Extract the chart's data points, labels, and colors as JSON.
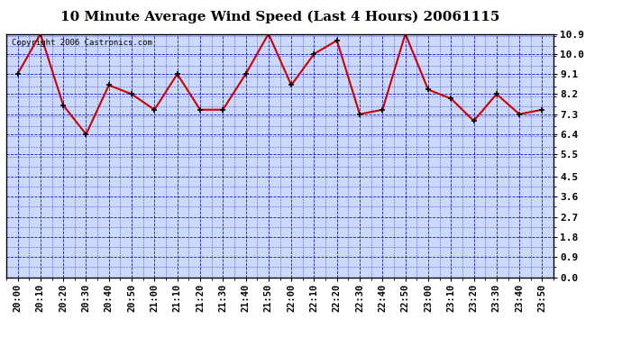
{
  "title": "10 Minute Average Wind Speed (Last 4 Hours) 20061115",
  "copyright": "Copyright 2006 Castronics.com",
  "x_labels": [
    "20:00",
    "20:10",
    "20:20",
    "20:30",
    "20:40",
    "20:50",
    "21:00",
    "21:10",
    "21:20",
    "21:30",
    "21:40",
    "21:50",
    "22:00",
    "22:10",
    "22:20",
    "22:30",
    "22:40",
    "22:50",
    "23:00",
    "23:10",
    "23:20",
    "23:30",
    "23:40",
    "23:50"
  ],
  "y_values": [
    9.1,
    10.9,
    7.7,
    6.4,
    8.6,
    8.2,
    7.5,
    9.1,
    7.5,
    7.5,
    9.1,
    10.9,
    8.6,
    10.0,
    10.6,
    7.3,
    7.5,
    10.9,
    8.4,
    8.0,
    7.0,
    8.2,
    7.3,
    7.5
  ],
  "line_color": "#cc0000",
  "marker_color": "#000000",
  "bg_color": "#ffffff",
  "plot_bg_color": "#ccd9ff",
  "grid_color": "#0000bb",
  "y_ticks": [
    0.0,
    0.9,
    1.8,
    2.7,
    3.6,
    4.5,
    5.5,
    6.4,
    7.3,
    8.2,
    9.1,
    10.0,
    10.9
  ],
  "ylim": [
    0.0,
    10.9
  ],
  "title_fontsize": 11,
  "copyright_fontsize": 6.5,
  "tick_fontsize": 7.5,
  "ytick_fontsize": 8.0
}
